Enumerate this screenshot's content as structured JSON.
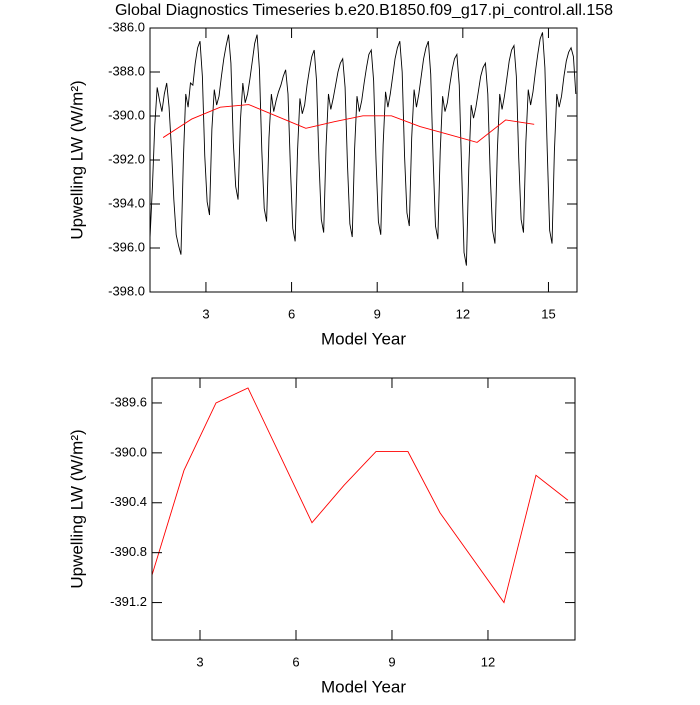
{
  "chart_data": [
    {
      "type": "line",
      "title": "Global Diagnostics Timeseries b.e20.B1850.f09_g17.pi_control.all.158",
      "xlabel": "Model Year",
      "ylabel": "Upwelling LW (W/m²)",
      "xlim": [
        1.04,
        16.0
      ],
      "ylim": [
        -398,
        -386
      ],
      "xticks": [
        3,
        6,
        9,
        12,
        15
      ],
      "yticks": [
        {
          "value": -398,
          "label": "-398.0"
        },
        {
          "value": -396,
          "label": "-396.0"
        },
        {
          "value": -394,
          "label": "-394.0"
        },
        {
          "value": -392,
          "label": "-392.0"
        },
        {
          "value": -390,
          "label": "-390.0"
        },
        {
          "value": -388,
          "label": "-388.0"
        },
        {
          "value": -386,
          "label": "-386.0"
        }
      ],
      "series": [
        {
          "color": "#000000",
          "x": [
            1.042,
            1.125,
            1.208,
            1.292,
            1.375,
            1.458,
            1.542,
            1.625,
            1.708,
            1.792,
            1.875,
            1.958,
            2.042,
            2.125,
            2.208,
            2.292,
            2.375,
            2.458,
            2.542,
            2.625,
            2.708,
            2.792,
            2.875,
            2.958,
            3.042,
            3.125,
            3.208,
            3.292,
            3.375,
            3.458,
            3.542,
            3.625,
            3.708,
            3.792,
            3.875,
            3.958,
            4.042,
            4.125,
            4.208,
            4.292,
            4.375,
            4.458,
            4.542,
            4.625,
            4.708,
            4.792,
            4.875,
            4.958,
            5.042,
            5.125,
            5.208,
            5.292,
            5.375,
            5.458,
            5.542,
            5.625,
            5.708,
            5.792,
            5.875,
            5.958,
            6.042,
            6.125,
            6.208,
            6.292,
            6.375,
            6.458,
            6.542,
            6.625,
            6.708,
            6.792,
            6.875,
            6.958,
            7.042,
            7.125,
            7.208,
            7.292,
            7.375,
            7.458,
            7.542,
            7.625,
            7.708,
            7.792,
            7.875,
            7.958,
            8.042,
            8.125,
            8.208,
            8.292,
            8.375,
            8.458,
            8.542,
            8.625,
            8.708,
            8.792,
            8.875,
            8.958,
            9.042,
            9.125,
            9.208,
            9.292,
            9.375,
            9.458,
            9.542,
            9.625,
            9.708,
            9.792,
            9.875,
            9.958,
            10.042,
            10.125,
            10.208,
            10.292,
            10.375,
            10.458,
            10.542,
            10.625,
            10.708,
            10.792,
            10.875,
            10.958,
            11.042,
            11.125,
            11.208,
            11.292,
            11.375,
            11.458,
            11.542,
            11.625,
            11.708,
            11.792,
            11.875,
            11.958,
            12.042,
            12.125,
            12.208,
            12.292,
            12.375,
            12.458,
            12.542,
            12.625,
            12.708,
            12.792,
            12.875,
            12.958,
            13.042,
            13.125,
            13.208,
            13.292,
            13.375,
            13.458,
            13.542,
            13.625,
            13.708,
            13.792,
            13.875,
            13.958,
            14.042,
            14.125,
            14.208,
            14.292,
            14.375,
            14.458,
            14.542,
            14.625,
            14.708,
            14.792,
            14.875,
            14.958,
            15.042,
            15.125,
            15.208,
            15.292,
            15.375,
            15.458,
            15.542,
            15.625,
            15.708,
            15.792,
            15.875,
            15.958
          ],
          "values": [
            -395.5,
            -393.2,
            -390.4,
            -388.7,
            -389.3,
            -389.8,
            -389.0,
            -388.5,
            -389.6,
            -391.5,
            -393.8,
            -395.4,
            -395.9,
            -396.3,
            -392.0,
            -389.0,
            -389.6,
            -388.5,
            -388.6,
            -387.6,
            -386.9,
            -386.6,
            -388.2,
            -391.8,
            -393.9,
            -394.5,
            -390.6,
            -388.8,
            -389.5,
            -389.1,
            -388.2,
            -387.4,
            -386.8,
            -386.3,
            -387.6,
            -391.2,
            -393.2,
            -393.8,
            -390.2,
            -388.5,
            -389.4,
            -389.0,
            -388.3,
            -387.5,
            -386.7,
            -386.3,
            -387.9,
            -391.6,
            -394.2,
            -394.8,
            -391.0,
            -389.0,
            -389.8,
            -389.3,
            -388.9,
            -388.6,
            -388.2,
            -387.9,
            -389.0,
            -392.3,
            -395.1,
            -395.7,
            -391.6,
            -389.2,
            -389.9,
            -389.5,
            -388.6,
            -387.9,
            -387.3,
            -387.0,
            -388.4,
            -392.0,
            -394.7,
            -395.3,
            -391.4,
            -389.0,
            -389.7,
            -389.2,
            -388.6,
            -388.0,
            -387.6,
            -387.4,
            -388.7,
            -392.2,
            -394.9,
            -395.5,
            -391.5,
            -389.1,
            -389.8,
            -389.3,
            -388.5,
            -387.8,
            -387.2,
            -387.0,
            -388.4,
            -392.0,
            -394.8,
            -395.4,
            -391.3,
            -388.9,
            -389.6,
            -389.0,
            -388.2,
            -387.4,
            -386.9,
            -386.6,
            -388.0,
            -391.8,
            -394.4,
            -395.0,
            -391.0,
            -388.8,
            -389.6,
            -389.0,
            -388.2,
            -387.4,
            -386.9,
            -386.6,
            -388.1,
            -391.9,
            -395.0,
            -395.6,
            -391.6,
            -389.1,
            -389.8,
            -389.4,
            -388.6,
            -387.9,
            -387.4,
            -387.2,
            -388.6,
            -392.4,
            -396.2,
            -396.8,
            -392.4,
            -389.5,
            -390.1,
            -389.6,
            -388.9,
            -388.2,
            -387.8,
            -387.6,
            -389.0,
            -392.6,
            -395.2,
            -395.8,
            -391.6,
            -389.0,
            -389.7,
            -389.1,
            -388.3,
            -387.5,
            -387.0,
            -386.8,
            -388.2,
            -391.9,
            -394.7,
            -395.3,
            -391.2,
            -388.8,
            -389.5,
            -388.9,
            -388.0,
            -387.2,
            -386.5,
            -386.2,
            -387.8,
            -391.6,
            -395.2,
            -395.8,
            -391.6,
            -389.0,
            -389.6,
            -389.1,
            -388.2,
            -387.5,
            -387.1,
            -386.9,
            -387.3,
            -389.0
          ]
        },
        {
          "color": "#ff0000",
          "x": [
            1.5,
            2.5,
            3.5,
            4.5,
            5.5,
            6.5,
            7.5,
            8.5,
            9.5,
            10.5,
            11.5,
            12.5,
            13.5,
            14.5
          ],
          "values": [
            -390.98,
            -390.14,
            -389.6,
            -389.48,
            -390.02,
            -390.56,
            -390.26,
            -389.99,
            -389.99,
            -390.48,
            -390.84,
            -391.2,
            -390.18,
            -390.38
          ]
        }
      ]
    },
    {
      "type": "line",
      "xlabel": "Model Year",
      "ylabel": "Upwelling LW (W/m²)",
      "xlim": [
        1.5,
        14.72
      ],
      "ylim": [
        -391.5,
        -389.4
      ],
      "xticks": [
        3,
        6,
        9,
        12
      ],
      "yticks": [
        -391.2,
        -390.8,
        -390.4,
        {
          "value": -390,
          "label": "-390.0"
        },
        -389.6
      ],
      "series": [
        {
          "color": "#ff0000",
          "x": [
            1.5,
            2.5,
            3.5,
            4.5,
            5.5,
            6.5,
            7.5,
            8.5,
            9.5,
            10.5,
            11.5,
            12.5,
            13.5,
            14.5
          ],
          "values": [
            -390.98,
            -390.14,
            -389.6,
            -389.48,
            -390.02,
            -390.56,
            -390.26,
            -389.99,
            -389.99,
            -390.48,
            -390.84,
            -391.2,
            -390.18,
            -390.38
          ]
        }
      ]
    }
  ]
}
